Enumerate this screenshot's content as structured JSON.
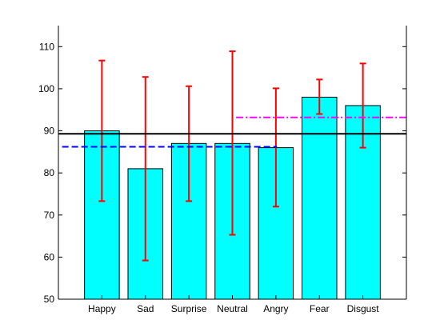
{
  "chart_data": {
    "type": "bar",
    "categories": [
      "Happy",
      "Sad",
      "Surprise",
      "Neutral",
      "Angry",
      "Fear",
      "Disgust"
    ],
    "values": [
      90,
      81,
      87,
      87,
      86,
      98,
      96
    ],
    "error_low": [
      73.3,
      59.2,
      73.3,
      65.3,
      72,
      94,
      86
    ],
    "error_high": [
      106.7,
      102.8,
      100.6,
      108.9,
      100.1,
      102.2,
      106
    ],
    "ylim": [
      50,
      115
    ],
    "yticks": [
      50,
      60,
      70,
      80,
      90,
      100,
      110
    ],
    "grid": false,
    "bar_color": "#00ffff",
    "error_color": "#ff0000",
    "reference_lines": [
      {
        "style": "solid",
        "color": "#000000",
        "y": 89.3,
        "x_from": "left-edge",
        "x_to": "right-edge"
      },
      {
        "style": "dashed",
        "color": "#0000ff",
        "y": 86.2,
        "x_from": "Happy",
        "x_to": "Neutral"
      },
      {
        "style": "dash-dot",
        "color": "#ff00ff",
        "y": 93.2,
        "x_from": "Angry",
        "x_to": "Disgust"
      }
    ],
    "title": "",
    "xlabel": "",
    "ylabel": ""
  }
}
